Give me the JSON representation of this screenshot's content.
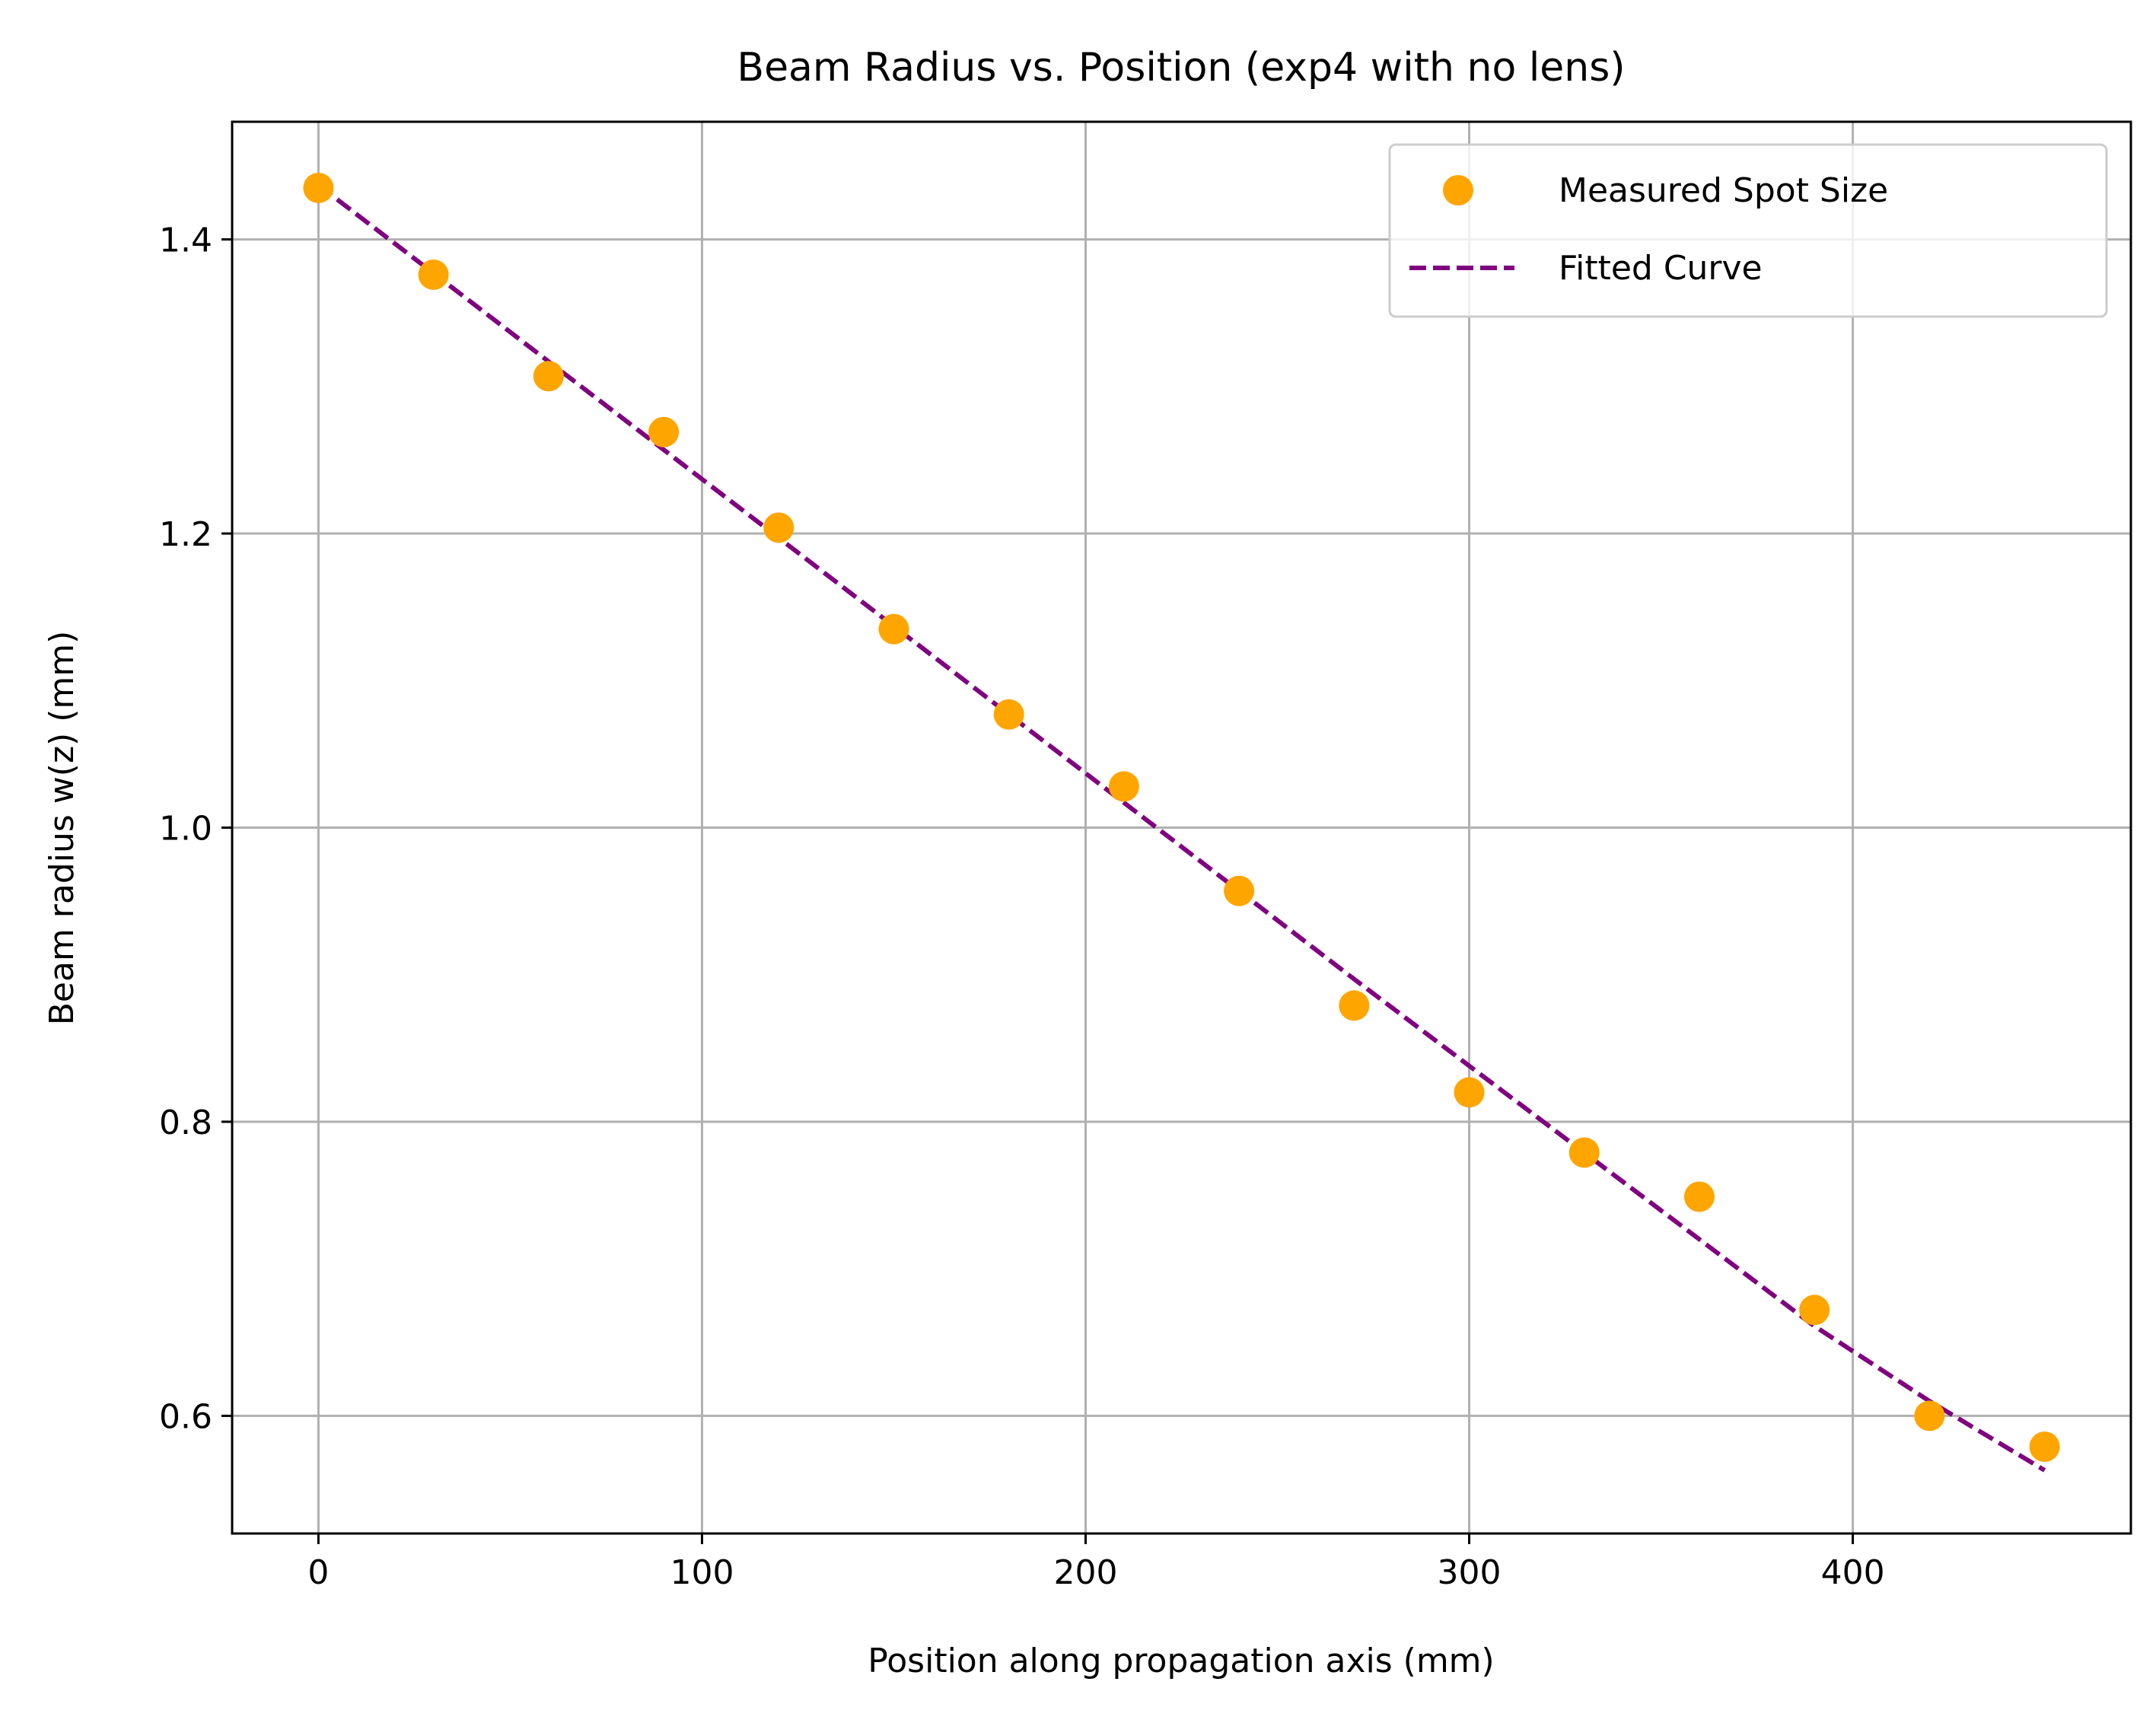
{
  "chart_data": {
    "type": "scatter",
    "title": "Beam Radius vs. Position (exp4 with no lens)",
    "xlabel": "Position along propagation axis (mm)",
    "ylabel": "Beam radius w(z) (mm)",
    "xlim": [
      -22.5,
      472.5
    ],
    "ylim": [
      0.52,
      1.48
    ],
    "xticks": [
      0,
      100,
      200,
      300,
      400
    ],
    "yticks": [
      0.6,
      0.8,
      1.0,
      1.2,
      1.4
    ],
    "xtick_labels": [
      "0",
      "100",
      "200",
      "300",
      "400"
    ],
    "ytick_labels": [
      "0.6",
      "0.8",
      "1.0",
      "1.2",
      "1.4"
    ],
    "grid": true,
    "legend_position": "top-right",
    "series": [
      {
        "name": "Measured Spot Size",
        "kind": "scatter",
        "color": "#FFA500",
        "x": [
          0,
          30,
          60,
          90,
          120,
          150,
          180,
          210,
          240,
          270,
          300,
          330,
          360,
          390,
          420,
          450
        ],
        "y": [
          1.435,
          1.376,
          1.307,
          1.269,
          1.204,
          1.135,
          1.077,
          1.028,
          0.957,
          0.879,
          0.82,
          0.779,
          0.749,
          0.672,
          0.6,
          0.579
        ]
      },
      {
        "name": "Fitted Curve",
        "kind": "line",
        "style": "dashed",
        "color": "#800080",
        "x": [
          0,
          30,
          60,
          90,
          120,
          150,
          180,
          210,
          240,
          270,
          300,
          330,
          360,
          390,
          420,
          450
        ],
        "y": [
          1.437,
          1.377,
          1.317,
          1.257,
          1.197,
          1.137,
          1.077,
          1.017,
          0.957,
          0.897,
          0.838,
          0.779,
          0.72,
          0.661,
          0.61,
          0.563
        ]
      }
    ]
  }
}
